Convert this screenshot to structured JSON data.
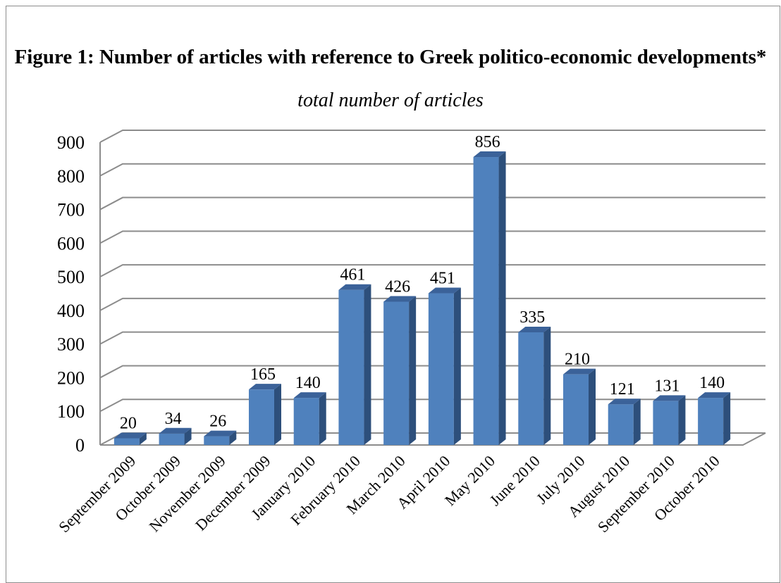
{
  "chart_data": {
    "type": "bar",
    "title": "Figure 1: Number of articles with reference to Greek politico-economic developments*",
    "subtitle": "total number of articles",
    "xlabel": "",
    "ylabel": "",
    "ylim": [
      0,
      900
    ],
    "yticks": [
      0,
      100,
      200,
      300,
      400,
      500,
      600,
      700,
      800,
      900
    ],
    "grid": true,
    "legend": "none",
    "categories": [
      "September 2009",
      "October 2009",
      "November 2009",
      "December 2009",
      "January 2010",
      "February 2010",
      "March 2010",
      "April 2010",
      "May 2010",
      "June 2010",
      "July 2010",
      "August 2010",
      "September 2010",
      "October 2010"
    ],
    "values": [
      20,
      34,
      26,
      165,
      140,
      461,
      426,
      451,
      856,
      335,
      210,
      121,
      131,
      140
    ],
    "colors": {
      "bar_front": "#4f81bd",
      "bar_side": "#2d4f7b",
      "bar_top": "#3b6299",
      "grid": "#8c8c8c"
    }
  }
}
